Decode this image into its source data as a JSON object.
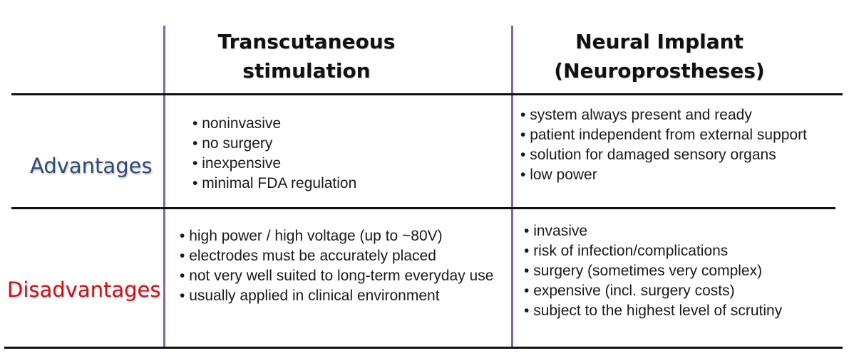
{
  "headers": {
    "col1": [
      "Transcutaneous",
      "stimulation"
    ],
    "col2": [
      "Neural Implant",
      "(Neuroprostheses)"
    ]
  },
  "rows": [
    {
      "label": "Advantages",
      "label_color": "#2e4a7a",
      "transcutaneous": [
        "noninvasive",
        "no surgery",
        "inexpensive",
        "minimal FDA regulation"
      ],
      "implant": [
        "system always present and ready",
        "patient independent from external support",
        "solution for damaged sensory organs",
        "low power"
      ]
    },
    {
      "label": "Disadvantages",
      "label_color": "#c0161c",
      "transcutaneous": [
        "high power / high voltage (up to ~80V)",
        "electrodes must be accurately placed",
        "not very well suited to long-term everyday use",
        "usually applied in clinical environment"
      ],
      "implant": [
        "invasive",
        "risk of infection/complications",
        "surgery (sometimes very complex)",
        "expensive (incl. surgery costs)",
        "subject to the highest level of scrutiny"
      ]
    }
  ],
  "colors": {
    "divider": "#7b66a8",
    "rule": "#111111"
  }
}
